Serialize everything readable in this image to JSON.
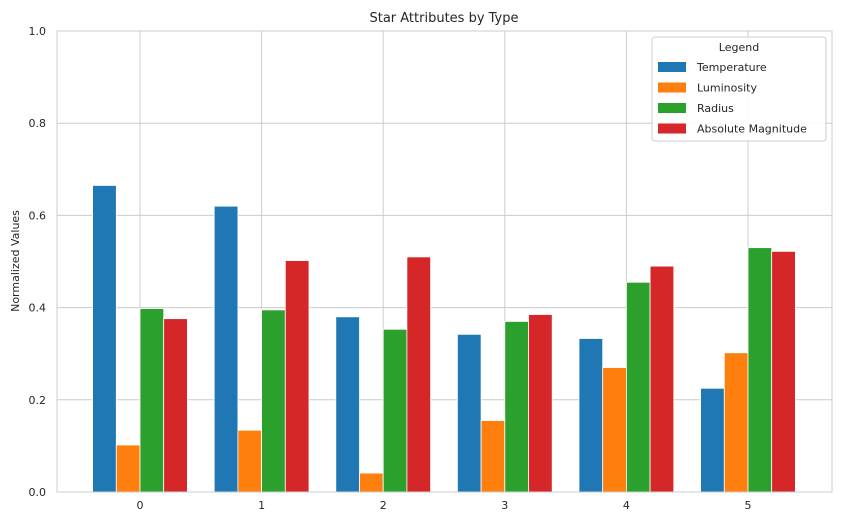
{
  "chart_data": {
    "type": "bar",
    "title": "Star Attributes by Type",
    "xlabel": "",
    "ylabel": "Normalized Values",
    "categories": [
      "0",
      "1",
      "2",
      "3",
      "4",
      "5"
    ],
    "ylim": [
      0,
      1.0
    ],
    "yticks": [
      "0.0",
      "0.2",
      "0.4",
      "0.6",
      "0.8",
      "1.0"
    ],
    "grid": true,
    "legend": {
      "title": "Legend",
      "placement": "top-right"
    },
    "series": [
      {
        "name": "Temperature",
        "color": "#1f77b4",
        "values": [
          0.665,
          0.62,
          0.38,
          0.342,
          0.333,
          0.225
        ]
      },
      {
        "name": "Luminosity",
        "color": "#ff7f0e",
        "values": [
          0.102,
          0.134,
          0.041,
          0.155,
          0.27,
          0.302
        ]
      },
      {
        "name": "Radius",
        "color": "#2ca02c",
        "values": [
          0.398,
          0.395,
          0.353,
          0.37,
          0.455,
          0.53
        ]
      },
      {
        "name": "Absolute Magnitude",
        "color": "#d62728",
        "values": [
          0.376,
          0.502,
          0.51,
          0.385,
          0.49,
          0.522
        ]
      }
    ]
  }
}
